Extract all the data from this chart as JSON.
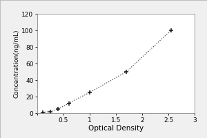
{
  "x_data": [
    0.1,
    0.25,
    0.4,
    0.6,
    1.0,
    1.7,
    2.55
  ],
  "y_data": [
    1.0,
    2.0,
    5.0,
    12.0,
    25.0,
    50.0,
    100.0
  ],
  "xlabel": "Optical Density",
  "ylabel": "Concentration(ng/mL)",
  "xlim": [
    0,
    3
  ],
  "ylim": [
    0,
    120
  ],
  "xticks": [
    0,
    0.5,
    1.0,
    1.5,
    2.0,
    2.5,
    3.0
  ],
  "yticks": [
    0,
    20,
    40,
    60,
    80,
    100,
    120
  ],
  "line_color": "#444444",
  "marker_color": "#222222",
  "background_color": "#ffffff",
  "fig_background": "#ffffff",
  "outer_box_color": "#cccccc",
  "marker": "+",
  "markersize": 5,
  "markeredgewidth": 1.2,
  "linewidth": 0.9,
  "linestyle": "dotted",
  "xlabel_fontsize": 7.5,
  "ylabel_fontsize": 6.5,
  "tick_fontsize": 6.5,
  "x_label_skip_zero": true
}
